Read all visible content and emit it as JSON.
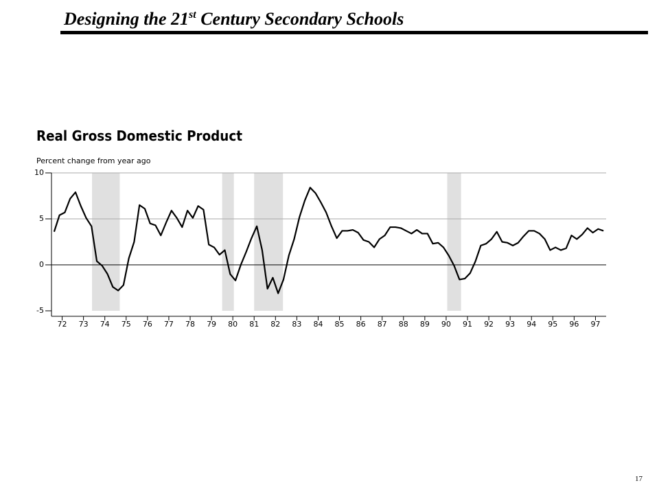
{
  "slide": {
    "title_start": "Designing the 21",
    "title_sup": "st",
    "title_end": " Century Secondary Schools",
    "page_number": "17"
  },
  "chart_data": {
    "type": "line",
    "title": "Real Gross Domestic Product",
    "subtitle": "Percent change from year ago",
    "x": [
      1972.125,
      1972.375,
      1972.625,
      1972.875,
      1973.125,
      1973.375,
      1973.625,
      1973.875,
      1974.125,
      1974.375,
      1974.625,
      1974.875,
      1975.125,
      1975.375,
      1975.625,
      1975.875,
      1976.125,
      1976.375,
      1976.625,
      1976.875,
      1977.125,
      1977.375,
      1977.625,
      1977.875,
      1978.125,
      1978.375,
      1978.625,
      1978.875,
      1979.125,
      1979.375,
      1979.625,
      1979.875,
      1980.125,
      1980.375,
      1980.625,
      1980.875,
      1981.125,
      1981.375,
      1981.625,
      1981.875,
      1982.125,
      1982.375,
      1982.625,
      1982.875,
      1983.125,
      1983.375,
      1983.625,
      1983.875,
      1984.125,
      1984.375,
      1984.625,
      1984.875,
      1985.125,
      1985.375,
      1985.625,
      1985.875,
      1986.125,
      1986.375,
      1986.625,
      1986.875,
      1987.125,
      1987.375,
      1987.625,
      1987.875,
      1988.125,
      1988.375,
      1988.625,
      1988.875,
      1989.125,
      1989.375,
      1989.625,
      1989.875,
      1990.125,
      1990.375,
      1990.625,
      1990.875,
      1991.125,
      1991.375,
      1991.625,
      1991.875,
      1992.125,
      1992.375,
      1992.625,
      1992.875,
      1993.125,
      1993.375,
      1993.625,
      1993.875,
      1994.125,
      1994.375,
      1994.625,
      1994.875,
      1995.125,
      1995.375,
      1995.625,
      1995.875,
      1996.125,
      1996.375,
      1996.625,
      1996.875,
      1997.125,
      1997.375,
      1997.625,
      1997.875
    ],
    "values": [
      3.6,
      5.4,
      5.7,
      7.2,
      7.9,
      6.4,
      5.1,
      4.2,
      0.4,
      -0.1,
      -1,
      -2.4,
      -2.8,
      -2.2,
      0.7,
      2.5,
      6.5,
      6.1,
      4.5,
      4.3,
      3.2,
      4.6,
      5.9,
      5.1,
      4.1,
      5.9,
      5.1,
      6.4,
      6.0,
      2.2,
      1.9,
      1.1,
      1.6,
      -1,
      -1.7,
      0,
      1.4,
      2.9,
      4.2,
      1.6,
      -2.6,
      -1.4,
      -3.1,
      -1.6,
      1,
      2.8,
      5.2,
      7.0,
      8.4,
      7.8,
      6.8,
      5.7,
      4.2,
      2.9,
      3.7,
      3.7,
      3.8,
      3.5,
      2.7,
      2.5,
      1.9,
      2.8,
      3.2,
      4.1,
      4.1,
      4.0,
      3.7,
      3.4,
      3.8,
      3.4,
      3.4,
      2.3,
      2.4,
      1.9,
      1.0,
      -0.1,
      -1.6,
      -1.5,
      -0.9,
      0.4,
      2.1,
      2.3,
      2.8,
      3.6,
      2.5,
      2.4,
      2.1,
      2.4,
      3.1,
      3.7,
      3.7,
      3.4,
      2.8,
      1.6,
      1.9,
      1.6,
      1.8,
      3.2,
      2.8,
      3.3,
      4.0,
      3.5,
      3.9,
      3.7
    ],
    "color": "#000000",
    "recessions": [
      [
        1973.9,
        1975.2
      ],
      [
        1980.0,
        1980.55
      ],
      [
        1981.5,
        1982.85
      ],
      [
        1990.55,
        1991.2
      ]
    ],
    "recession_color": "#e0e0e0",
    "xlim": [
      1972,
      1998
    ],
    "xticks": [
      {
        "value": 1972.5,
        "label": "72"
      },
      {
        "value": 1973.5,
        "label": "73"
      },
      {
        "value": 1974.5,
        "label": "74"
      },
      {
        "value": 1975.5,
        "label": "75"
      },
      {
        "value": 1976.5,
        "label": "76"
      },
      {
        "value": 1977.5,
        "label": "77"
      },
      {
        "value": 1978.5,
        "label": "78"
      },
      {
        "value": 1979.5,
        "label": "79"
      },
      {
        "value": 1980.5,
        "label": "80"
      },
      {
        "value": 1981.5,
        "label": "81"
      },
      {
        "value": 1982.5,
        "label": "82"
      },
      {
        "value": 1983.5,
        "label": "83"
      },
      {
        "value": 1984.5,
        "label": "84"
      },
      {
        "value": 1985.5,
        "label": "85"
      },
      {
        "value": 1986.5,
        "label": "86"
      },
      {
        "value": 1987.5,
        "label": "87"
      },
      {
        "value": 1988.5,
        "label": "88"
      },
      {
        "value": 1989.5,
        "label": "89"
      },
      {
        "value": 1990.5,
        "label": "90"
      },
      {
        "value": 1991.5,
        "label": "91"
      },
      {
        "value": 1992.5,
        "label": "92"
      },
      {
        "value": 1993.5,
        "label": "93"
      },
      {
        "value": 1994.5,
        "label": "94"
      },
      {
        "value": 1995.5,
        "label": "95"
      },
      {
        "value": 1996.5,
        "label": "96"
      },
      {
        "value": 1997.5,
        "label": "97"
      }
    ],
    "ylim": [
      -5,
      10
    ],
    "yticks": [
      -5,
      0,
      5,
      10
    ],
    "grid": true
  }
}
